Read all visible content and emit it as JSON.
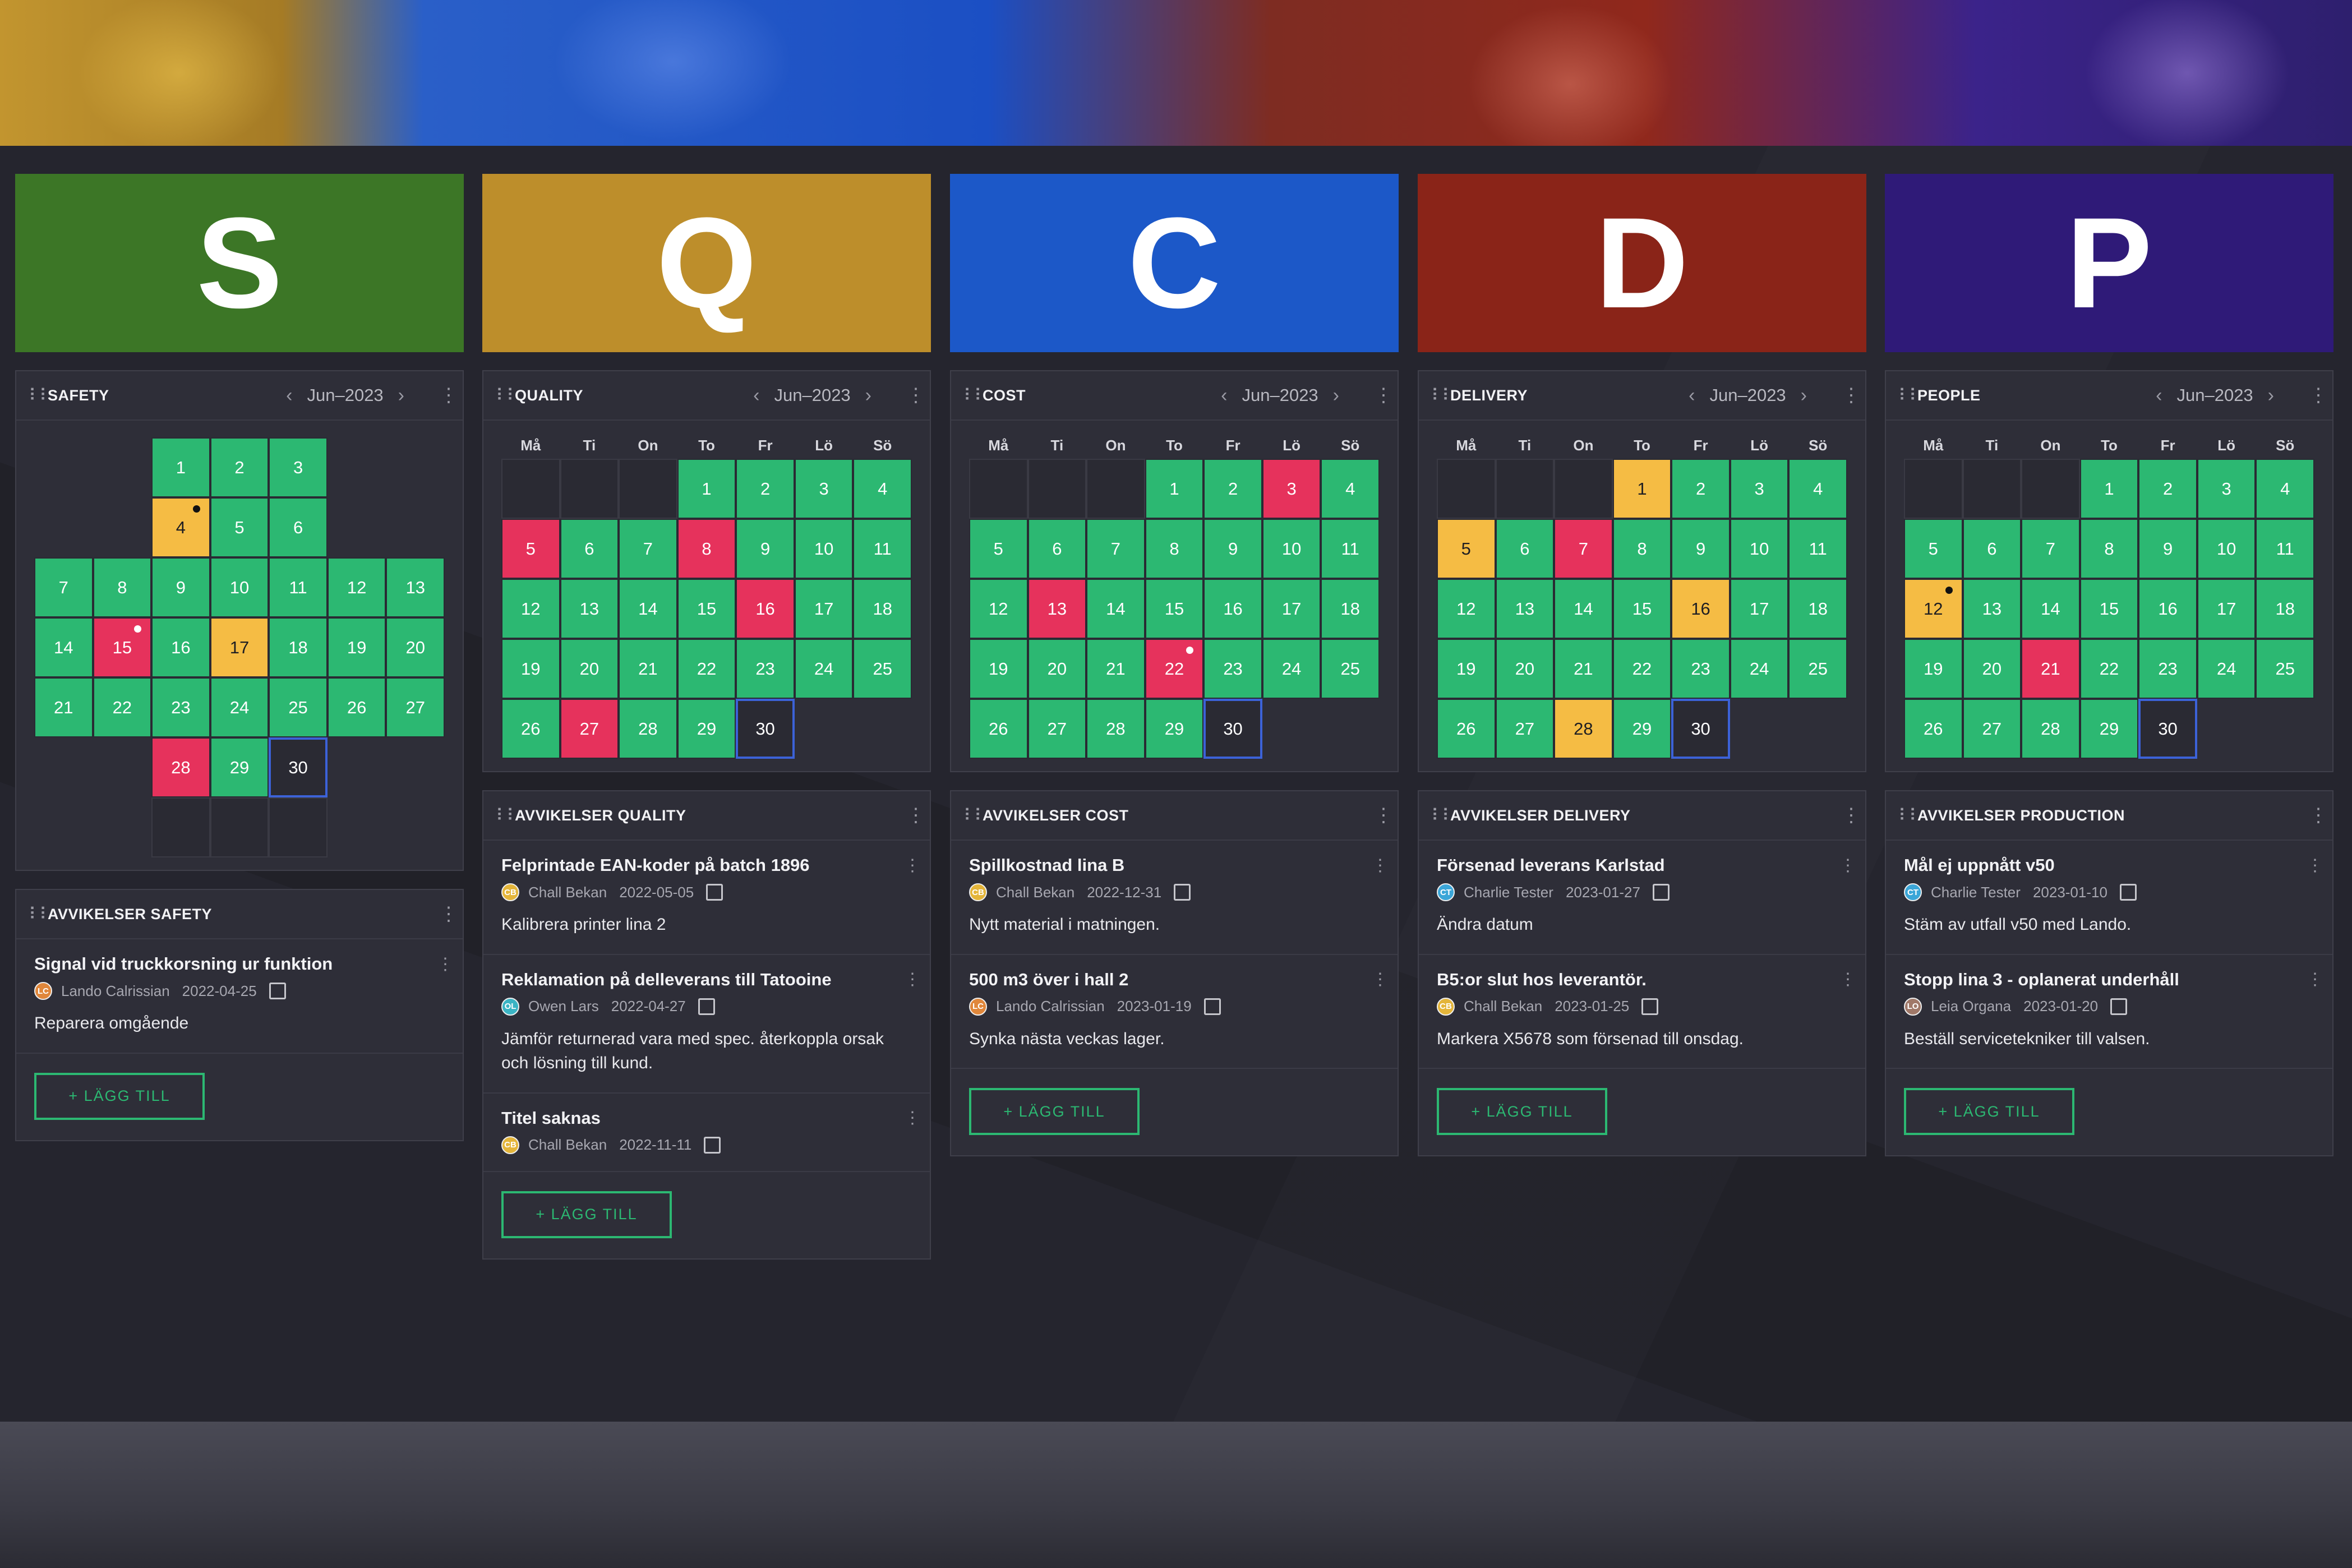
{
  "columns": [
    {
      "letter": "S",
      "tile_color": "#3c7626",
      "panel_title": "SAFETY",
      "month": "Jun–2023",
      "layout": "cross",
      "calendar_days": [
        {
          "day": "1",
          "status": "green"
        },
        {
          "day": "2",
          "status": "green"
        },
        {
          "day": "3",
          "status": "green"
        },
        {
          "day": "4",
          "status": "yellow",
          "mark": "black"
        },
        {
          "day": "5",
          "status": "green"
        },
        {
          "day": "6",
          "status": "green"
        },
        {
          "day": "7",
          "status": "green"
        },
        {
          "day": "8",
          "status": "green"
        },
        {
          "day": "9",
          "status": "green"
        },
        {
          "day": "10",
          "status": "green"
        },
        {
          "day": "11",
          "status": "green"
        },
        {
          "day": "12",
          "status": "green"
        },
        {
          "day": "13",
          "status": "green"
        },
        {
          "day": "14",
          "status": "green"
        },
        {
          "day": "15",
          "status": "red",
          "mark": "white"
        },
        {
          "day": "16",
          "status": "green"
        },
        {
          "day": "17",
          "status": "yellow"
        },
        {
          "day": "18",
          "status": "green"
        },
        {
          "day": "19",
          "status": "green"
        },
        {
          "day": "20",
          "status": "green"
        },
        {
          "day": "21",
          "status": "green"
        },
        {
          "day": "22",
          "status": "green"
        },
        {
          "day": "23",
          "status": "green"
        },
        {
          "day": "24",
          "status": "green"
        },
        {
          "day": "25",
          "status": "green"
        },
        {
          "day": "26",
          "status": "green"
        },
        {
          "day": "27",
          "status": "green"
        },
        {
          "day": "28",
          "status": "red"
        },
        {
          "day": "29",
          "status": "green"
        },
        {
          "day": "30",
          "status": "today"
        }
      ],
      "deviations_title": "AVVIKELSER SAFETY",
      "deviations": [
        {
          "title": "Signal vid truckkorsning ur funktion",
          "initials": "LC",
          "avatar_color": "#e0873b",
          "author": "Lando Calrissian",
          "date": "2022-04-25",
          "desc": "Reparera omgående"
        }
      ],
      "add_label": "+ LÄGG TILL"
    },
    {
      "letter": "Q",
      "tile_color": "#bd8e2b",
      "panel_title": "QUALITY",
      "month": "Jun–2023",
      "layout": "month",
      "weekdays": [
        "Må",
        "Ti",
        "On",
        "To",
        "Fr",
        "Lö",
        "Sö"
      ],
      "leading_empty": 3,
      "calendar_days": [
        {
          "day": "1",
          "status": "green"
        },
        {
          "day": "2",
          "status": "green"
        },
        {
          "day": "3",
          "status": "green"
        },
        {
          "day": "4",
          "status": "green"
        },
        {
          "day": "5",
          "status": "red"
        },
        {
          "day": "6",
          "status": "green"
        },
        {
          "day": "7",
          "status": "green"
        },
        {
          "day": "8",
          "status": "red"
        },
        {
          "day": "9",
          "status": "green"
        },
        {
          "day": "10",
          "status": "green"
        },
        {
          "day": "11",
          "status": "green"
        },
        {
          "day": "12",
          "status": "green"
        },
        {
          "day": "13",
          "status": "green"
        },
        {
          "day": "14",
          "status": "green"
        },
        {
          "day": "15",
          "status": "green"
        },
        {
          "day": "16",
          "status": "red"
        },
        {
          "day": "17",
          "status": "green"
        },
        {
          "day": "18",
          "status": "green"
        },
        {
          "day": "19",
          "status": "green"
        },
        {
          "day": "20",
          "status": "green"
        },
        {
          "day": "21",
          "status": "green"
        },
        {
          "day": "22",
          "status": "green"
        },
        {
          "day": "23",
          "status": "green"
        },
        {
          "day": "24",
          "status": "green"
        },
        {
          "day": "25",
          "status": "green"
        },
        {
          "day": "26",
          "status": "green"
        },
        {
          "day": "27",
          "status": "red"
        },
        {
          "day": "28",
          "status": "green"
        },
        {
          "day": "29",
          "status": "green"
        },
        {
          "day": "30",
          "status": "today"
        }
      ],
      "deviations_title": "AVVIKELSER QUALITY",
      "deviations": [
        {
          "title": "Felprintade EAN-koder på batch 1896",
          "initials": "CB",
          "avatar_color": "#e4b53a",
          "author": "Chall Bekan",
          "date": "2022-05-05",
          "desc": "Kalibrera printer lina 2"
        },
        {
          "title": "Reklamation på delleverans till Tatooine",
          "initials": "OL",
          "avatar_color": "#3bb4c4",
          "author": "Owen Lars",
          "date": "2022-04-27",
          "desc": "Jämför returnerad vara med spec. återkoppla orsak och lösning till kund."
        },
        {
          "title": "Titel saknas",
          "initials": "CB",
          "avatar_color": "#e4b53a",
          "author": "Chall Bekan",
          "date": "2022-11-11",
          "desc": ""
        }
      ],
      "add_label": "+ LÄGG TILL"
    },
    {
      "letter": "C",
      "tile_color": "#1c58c8",
      "panel_title": "COST",
      "month": "Jun–2023",
      "layout": "month",
      "weekdays": [
        "Må",
        "Ti",
        "On",
        "To",
        "Fr",
        "Lö",
        "Sö"
      ],
      "leading_empty": 3,
      "calendar_days": [
        {
          "day": "1",
          "status": "green"
        },
        {
          "day": "2",
          "status": "green"
        },
        {
          "day": "3",
          "status": "red"
        },
        {
          "day": "4",
          "status": "green"
        },
        {
          "day": "5",
          "status": "green"
        },
        {
          "day": "6",
          "status": "green"
        },
        {
          "day": "7",
          "status": "green"
        },
        {
          "day": "8",
          "status": "green"
        },
        {
          "day": "9",
          "status": "green"
        },
        {
          "day": "10",
          "status": "green"
        },
        {
          "day": "11",
          "status": "green"
        },
        {
          "day": "12",
          "status": "green"
        },
        {
          "day": "13",
          "status": "red"
        },
        {
          "day": "14",
          "status": "green"
        },
        {
          "day": "15",
          "status": "green"
        },
        {
          "day": "16",
          "status": "green"
        },
        {
          "day": "17",
          "status": "green"
        },
        {
          "day": "18",
          "status": "green"
        },
        {
          "day": "19",
          "status": "green"
        },
        {
          "day": "20",
          "status": "green"
        },
        {
          "day": "21",
          "status": "green"
        },
        {
          "day": "22",
          "status": "red",
          "mark": "white"
        },
        {
          "day": "23",
          "status": "green"
        },
        {
          "day": "24",
          "status": "green"
        },
        {
          "day": "25",
          "status": "green"
        },
        {
          "day": "26",
          "status": "green"
        },
        {
          "day": "27",
          "status": "green"
        },
        {
          "day": "28",
          "status": "green"
        },
        {
          "day": "29",
          "status": "green"
        },
        {
          "day": "30",
          "status": "today"
        }
      ],
      "deviations_title": "AVVIKELSER COST",
      "deviations": [
        {
          "title": "Spillkostnad lina B",
          "initials": "CB",
          "avatar_color": "#e4b53a",
          "author": "Chall Bekan",
          "date": "2022-12-31",
          "desc": "Nytt material i matningen."
        },
        {
          "title": "500 m3 över i hall 2",
          "initials": "LC",
          "avatar_color": "#e0873b",
          "author": "Lando Calrissian",
          "date": "2023-01-19",
          "desc": "Synka nästa veckas lager."
        }
      ],
      "add_label": "+ LÄGG TILL"
    },
    {
      "letter": "D",
      "tile_color": "#8a2418",
      "panel_title": "DELIVERY",
      "month": "Jun–2023",
      "layout": "month",
      "weekdays": [
        "Må",
        "Ti",
        "On",
        "To",
        "Fr",
        "Lö",
        "Sö"
      ],
      "leading_empty": 3,
      "calendar_days": [
        {
          "day": "1",
          "status": "yellow"
        },
        {
          "day": "2",
          "status": "green"
        },
        {
          "day": "3",
          "status": "green"
        },
        {
          "day": "4",
          "status": "green"
        },
        {
          "day": "5",
          "status": "yellow"
        },
        {
          "day": "6",
          "status": "green"
        },
        {
          "day": "7",
          "status": "red"
        },
        {
          "day": "8",
          "status": "green"
        },
        {
          "day": "9",
          "status": "green"
        },
        {
          "day": "10",
          "status": "green"
        },
        {
          "day": "11",
          "status": "green"
        },
        {
          "day": "12",
          "status": "green"
        },
        {
          "day": "13",
          "status": "green"
        },
        {
          "day": "14",
          "status": "green"
        },
        {
          "day": "15",
          "status": "green"
        },
        {
          "day": "16",
          "status": "yellow"
        },
        {
          "day": "17",
          "status": "green"
        },
        {
          "day": "18",
          "status": "green"
        },
        {
          "day": "19",
          "status": "green"
        },
        {
          "day": "20",
          "status": "green"
        },
        {
          "day": "21",
          "status": "green"
        },
        {
          "day": "22",
          "status": "green"
        },
        {
          "day": "23",
          "status": "green"
        },
        {
          "day": "24",
          "status": "green"
        },
        {
          "day": "25",
          "status": "green"
        },
        {
          "day": "26",
          "status": "green"
        },
        {
          "day": "27",
          "status": "green"
        },
        {
          "day": "28",
          "status": "yellow"
        },
        {
          "day": "29",
          "status": "green"
        },
        {
          "day": "30",
          "status": "today"
        }
      ],
      "deviations_title": "AVVIKELSER DELIVERY",
      "deviations": [
        {
          "title": "Försenad leverans Karlstad",
          "initials": "CT",
          "avatar_color": "#3ba6d8",
          "author": "Charlie Tester",
          "date": "2023-01-27",
          "desc": "Ändra datum"
        },
        {
          "title": "B5:or slut hos leverantör.",
          "initials": "CB",
          "avatar_color": "#e4b53a",
          "author": "Chall Bekan",
          "date": "2023-01-25",
          "desc": "Markera X5678 som försenad till onsdag."
        }
      ],
      "add_label": "+ LÄGG TILL"
    },
    {
      "letter": "P",
      "tile_color": "#2f1a78",
      "panel_title": "PEOPLE",
      "month": "Jun–2023",
      "layout": "month",
      "weekdays": [
        "Må",
        "Ti",
        "On",
        "To",
        "Fr",
        "Lö",
        "Sö"
      ],
      "leading_empty": 3,
      "calendar_days": [
        {
          "day": "1",
          "status": "green"
        },
        {
          "day": "2",
          "status": "green"
        },
        {
          "day": "3",
          "status": "green"
        },
        {
          "day": "4",
          "status": "green"
        },
        {
          "day": "5",
          "status": "green"
        },
        {
          "day": "6",
          "status": "green"
        },
        {
          "day": "7",
          "status": "green"
        },
        {
          "day": "8",
          "status": "green"
        },
        {
          "day": "9",
          "status": "green"
        },
        {
          "day": "10",
          "status": "green"
        },
        {
          "day": "11",
          "status": "green"
        },
        {
          "day": "12",
          "status": "yellow",
          "mark": "black"
        },
        {
          "day": "13",
          "status": "green"
        },
        {
          "day": "14",
          "status": "green"
        },
        {
          "day": "15",
          "status": "green"
        },
        {
          "day": "16",
          "status": "green"
        },
        {
          "day": "17",
          "status": "green"
        },
        {
          "day": "18",
          "status": "green"
        },
        {
          "day": "19",
          "status": "green"
        },
        {
          "day": "20",
          "status": "green"
        },
        {
          "day": "21",
          "status": "red"
        },
        {
          "day": "22",
          "status": "green"
        },
        {
          "day": "23",
          "status": "green"
        },
        {
          "day": "24",
          "status": "green"
        },
        {
          "day": "25",
          "status": "green"
        },
        {
          "day": "26",
          "status": "green"
        },
        {
          "day": "27",
          "status": "green"
        },
        {
          "day": "28",
          "status": "green"
        },
        {
          "day": "29",
          "status": "green"
        },
        {
          "day": "30",
          "status": "today"
        }
      ],
      "deviations_title": "AVVIKELSER PRODUCTION",
      "deviations": [
        {
          "title": "Mål ej uppnått v50",
          "initials": "CT",
          "avatar_color": "#3ba6d8",
          "author": "Charlie Tester",
          "date": "2023-01-10",
          "desc": "Stäm av utfall v50 med Lando."
        },
        {
          "title": "Stopp lina 3 - oplanerat underhåll",
          "initials": "LO",
          "avatar_color": "#a07868",
          "author": "Leia Organa",
          "date": "2023-01-20",
          "desc": "Beställ servicetekniker till valsen."
        }
      ],
      "add_label": "+ LÄGG TILL"
    }
  ]
}
